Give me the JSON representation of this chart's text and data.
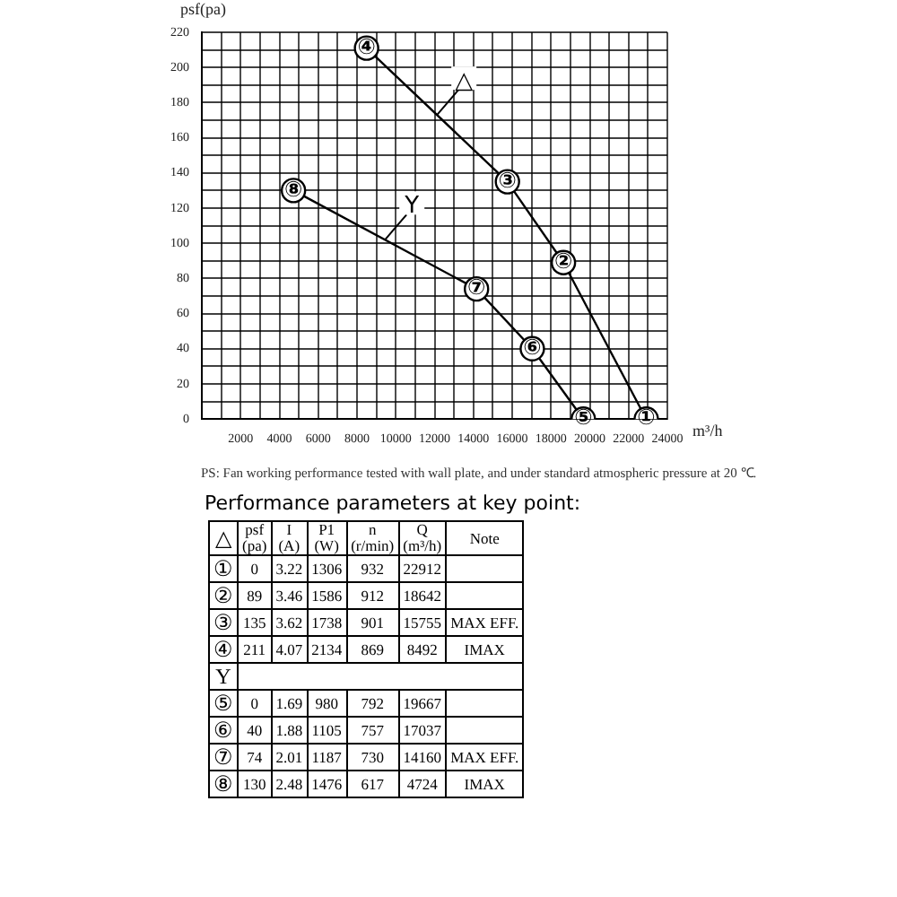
{
  "chart_data": {
    "type": "line",
    "xlabel": "m³/h",
    "ylabel": "psf(pa)",
    "xlim": [
      0,
      24000
    ],
    "ylim": [
      0,
      220
    ],
    "xticks": [
      {
        "value": 0,
        "label": null
      },
      {
        "value": 1000,
        "label": null
      },
      2000,
      {
        "value": 3000,
        "label": null
      },
      4000,
      {
        "value": 5000,
        "label": null
      },
      6000,
      {
        "value": 7000,
        "label": null
      },
      8000,
      {
        "value": 9000,
        "label": null
      },
      10000,
      {
        "value": 11000,
        "label": null
      },
      12000,
      {
        "value": 13000,
        "label": null
      },
      14000,
      {
        "value": 15000,
        "label": null
      },
      16000,
      {
        "value": 17000,
        "label": null
      },
      18000,
      {
        "value": 19000,
        "label": null
      },
      20000,
      {
        "value": 21000,
        "label": null
      },
      22000,
      {
        "value": 23000,
        "label": null
      },
      24000
    ],
    "yticks": [
      0,
      {
        "value": 10,
        "label": null
      },
      20,
      {
        "value": 30,
        "label": null
      },
      40,
      {
        "value": 50,
        "label": null
      },
      60,
      {
        "value": 70,
        "label": null
      },
      80,
      {
        "value": 90,
        "label": null
      },
      100,
      {
        "value": 110,
        "label": null
      },
      120,
      {
        "value": 130,
        "label": null
      },
      140,
      {
        "value": 150,
        "label": null
      },
      160,
      {
        "value": 170,
        "label": null
      },
      180,
      {
        "value": 190,
        "label": null
      },
      200,
      {
        "value": 210,
        "label": null
      },
      220
    ],
    "grid": true,
    "legend": false,
    "marker": "circle",
    "line_style": "solid",
    "series": [
      {
        "name": "△",
        "color": "#000000",
        "x": [
          8492,
          15755,
          18642,
          22912
        ],
        "values": [
          211,
          135,
          89,
          0
        ]
      },
      {
        "name": "Y",
        "color": "#000000",
        "x": [
          4724,
          14160,
          17037,
          19667
        ],
        "values": [
          130,
          74,
          40,
          0
        ]
      }
    ],
    "annotations": [
      {
        "text": "①",
        "x": 22912,
        "y": 0
      },
      {
        "text": "②",
        "x": 18642,
        "y": 89
      },
      {
        "text": "③",
        "x": 15755,
        "y": 135
      },
      {
        "text": "④",
        "x": 8492,
        "y": 211
      },
      {
        "text": "⑤",
        "x": 19667,
        "y": 0
      },
      {
        "text": "⑥",
        "x": 17037,
        "y": 40
      },
      {
        "text": "⑦",
        "x": 14160,
        "y": 74
      },
      {
        "text": "⑧",
        "x": 4724,
        "y": 130
      },
      "PS: Fan working performance tested with wall plate, and under standard atmospheric pressure at 20 ℃.",
      "Performance parameters at key point:",
      "△",
      "psf\n(pa)",
      "I\n(A)",
      "P1\n(W)",
      "n\n(r/min)",
      "Q\n(m³/h)",
      "Note",
      "①",
      "0",
      "3.22",
      "1306",
      "932",
      "22912",
      null,
      "②",
      "89",
      "3.46",
      "1586",
      "912",
      "18642",
      null,
      "③",
      "135",
      "3.62",
      "1738",
      "901",
      "15755",
      "MAX EFF.",
      "④",
      "211",
      "4.07",
      "2134",
      "869",
      "8492",
      "IMAX",
      "Y",
      null,
      null,
      null,
      null,
      null,
      null,
      "⑤",
      "0",
      "1.69",
      "980",
      "792",
      "19667",
      null,
      "⑥",
      "40",
      "1.88",
      "1105",
      "757",
      "17037",
      null,
      "⑦",
      "74",
      "2.01",
      "1187",
      "730",
      "14160",
      "MAX EFF.",
      "⑧",
      "130",
      "2.48",
      "1476",
      "617",
      "4724",
      "IMAX"
    ]
  }
}
